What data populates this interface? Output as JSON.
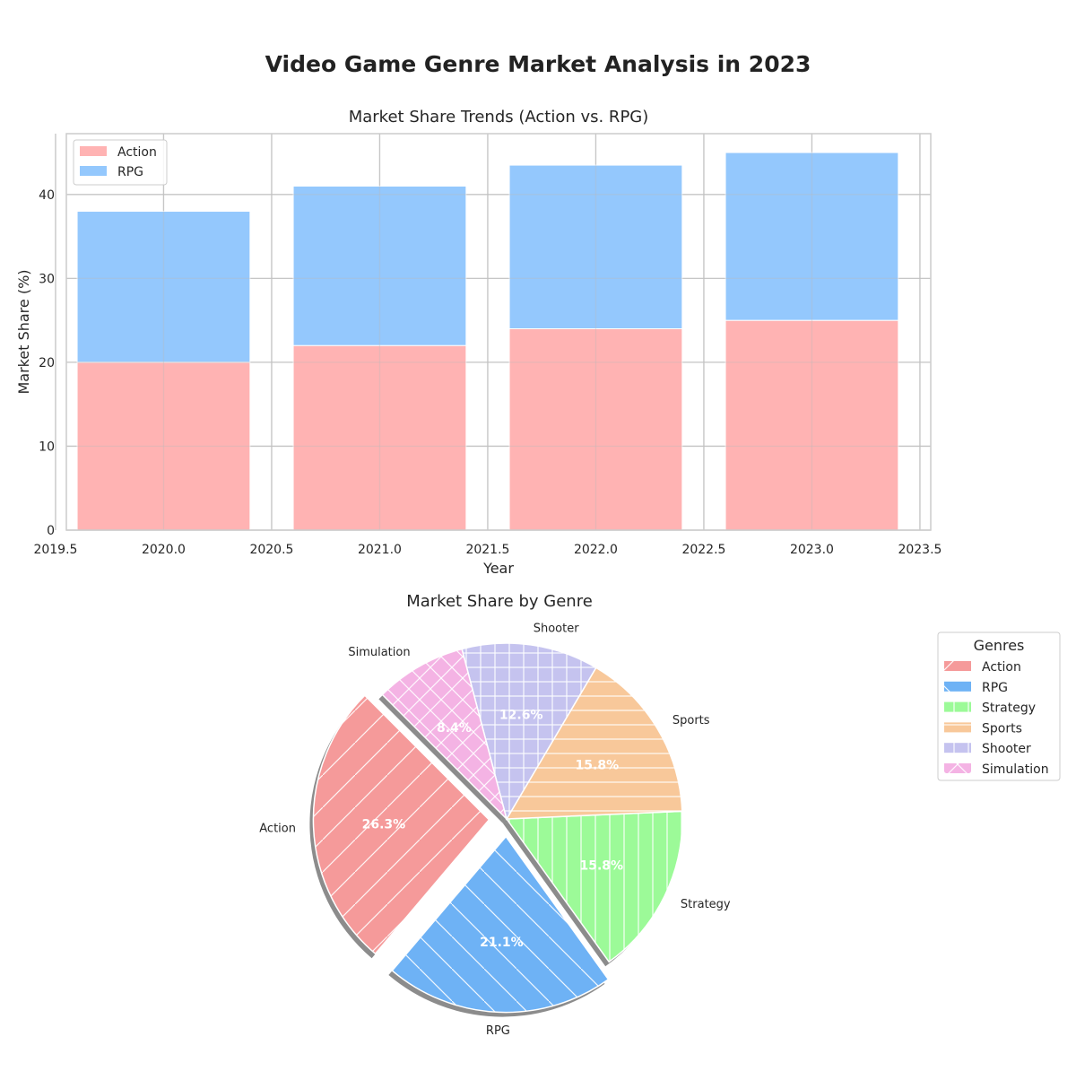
{
  "page": {
    "suptitle": "Video Game Genre Market Analysis in 2023"
  },
  "chart_data": [
    {
      "type": "bar",
      "stacked": true,
      "title": "Market Share Trends (Action vs. RPG)",
      "xlabel": "Year",
      "ylabel": "Market Share (%)",
      "x": [
        2020,
        2021,
        2022,
        2023
      ],
      "series": [
        {
          "name": "Action",
          "values": [
            20,
            22,
            24,
            25
          ],
          "color": "#ffb3b3"
        },
        {
          "name": "RPG",
          "values": [
            18,
            19,
            19.5,
            20
          ],
          "color": "#94c8fd"
        }
      ],
      "xlim": [
        2019.55,
        2023.55
      ],
      "ylim": [
        0,
        47.25
      ],
      "xticks": [
        "2019.5",
        "2020.0",
        "2020.5",
        "2021.0",
        "2021.5",
        "2022.0",
        "2022.5",
        "2023.0",
        "2023.5"
      ],
      "yticks": [
        "0",
        "10",
        "20",
        "30",
        "40"
      ],
      "grid": true,
      "legend": "top-left"
    },
    {
      "type": "pie",
      "title": "Market Share by Genre",
      "labels": [
        "Action",
        "RPG",
        "Strategy",
        "Sports",
        "Shooter",
        "Simulation"
      ],
      "values": [
        26.3,
        21.1,
        15.8,
        15.8,
        12.6,
        8.4
      ],
      "pct_labels": [
        "26.3%",
        "21.1%",
        "15.8%",
        "15.8%",
        "12.6%",
        "8.4%"
      ],
      "colors": [
        "#f59a9a",
        "#6eb2f5",
        "#9cfa98",
        "#f8c89a",
        "#c5c3ef",
        "#f4b3e4"
      ],
      "hatches": [
        "diagonal",
        "backslash",
        "vertical",
        "horizontal",
        "grid",
        "cross"
      ],
      "exploded": [
        "Action",
        "RPG"
      ],
      "shadow": true,
      "legend_title": "Genres",
      "legend": "right"
    }
  ]
}
